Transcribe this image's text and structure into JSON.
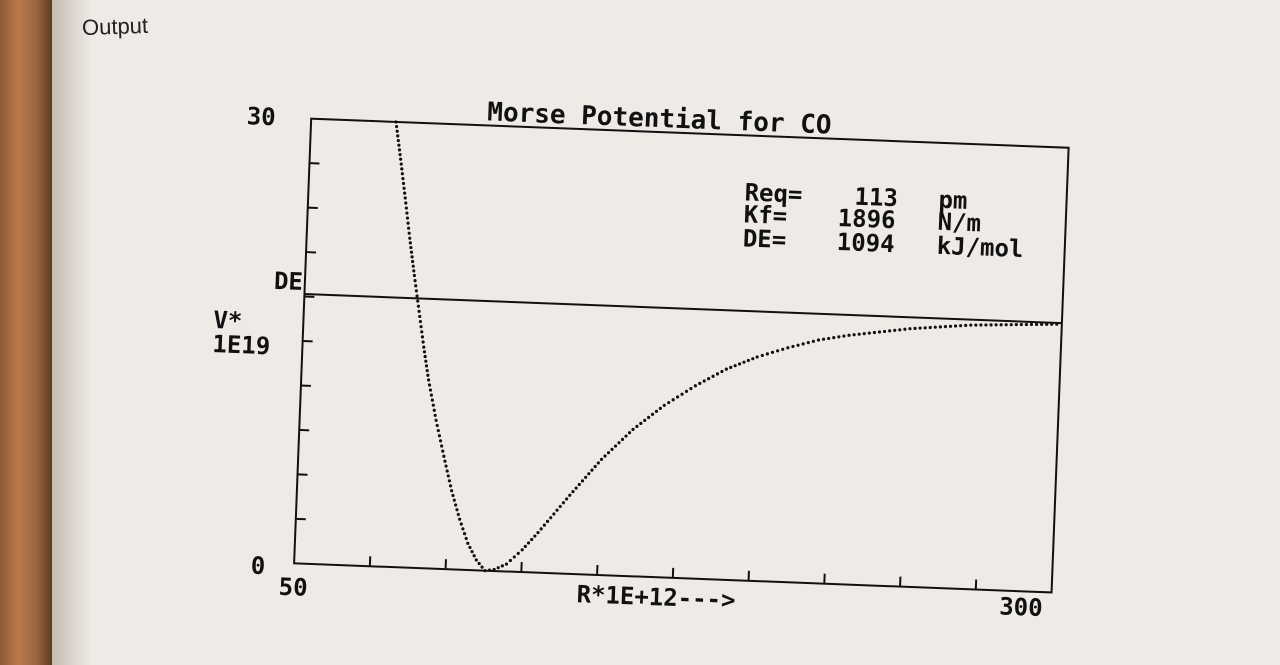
{
  "page": {
    "heading": "Output"
  },
  "chart_data": {
    "type": "line",
    "title": "Morse Potential for CO",
    "xlabel": "R*1E+12--->",
    "ylabel_lines": [
      "V*",
      "1E19"
    ],
    "xlim": [
      50,
      300
    ],
    "ylim": [
      0,
      30
    ],
    "x_tick_labels": [
      "50",
      "300"
    ],
    "y_tick_labels": [
      "0",
      "30"
    ],
    "de_label": "DE",
    "de_value": 18.17,
    "x_minor_ticks": 10,
    "y_minor_ticks": 10,
    "params": [
      {
        "name": "Req=",
        "value": "113",
        "unit": "pm"
      },
      {
        "name": "Kf=",
        "value": "1896",
        "unit": "N/m"
      },
      {
        "name": "DE=",
        "value": "1094",
        "unit": "kJ/mol"
      }
    ],
    "series": [
      {
        "x": [
          78,
          80,
          82,
          84,
          86,
          88,
          90,
          92,
          95,
          98,
          101,
          104,
          107,
          110,
          113,
          116,
          120,
          125,
          130,
          140,
          150,
          160,
          170,
          180,
          190,
          200,
          210,
          220,
          230,
          240,
          250,
          260,
          270,
          280,
          290,
          300
        ],
        "y": [
          30,
          27.5,
          24.9,
          22.2,
          19.7,
          17.3,
          14.9,
          12.7,
          10.0,
          7.6,
          5.3,
          3.4,
          1.8,
          0.7,
          0.0,
          0.1,
          0.5,
          1.5,
          2.7,
          5.3,
          7.8,
          9.9,
          11.6,
          13.0,
          14.2,
          15.1,
          15.8,
          16.4,
          16.8,
          17.1,
          17.4,
          17.6,
          17.8,
          17.9,
          18.0,
          18.1
        ]
      }
    ]
  }
}
